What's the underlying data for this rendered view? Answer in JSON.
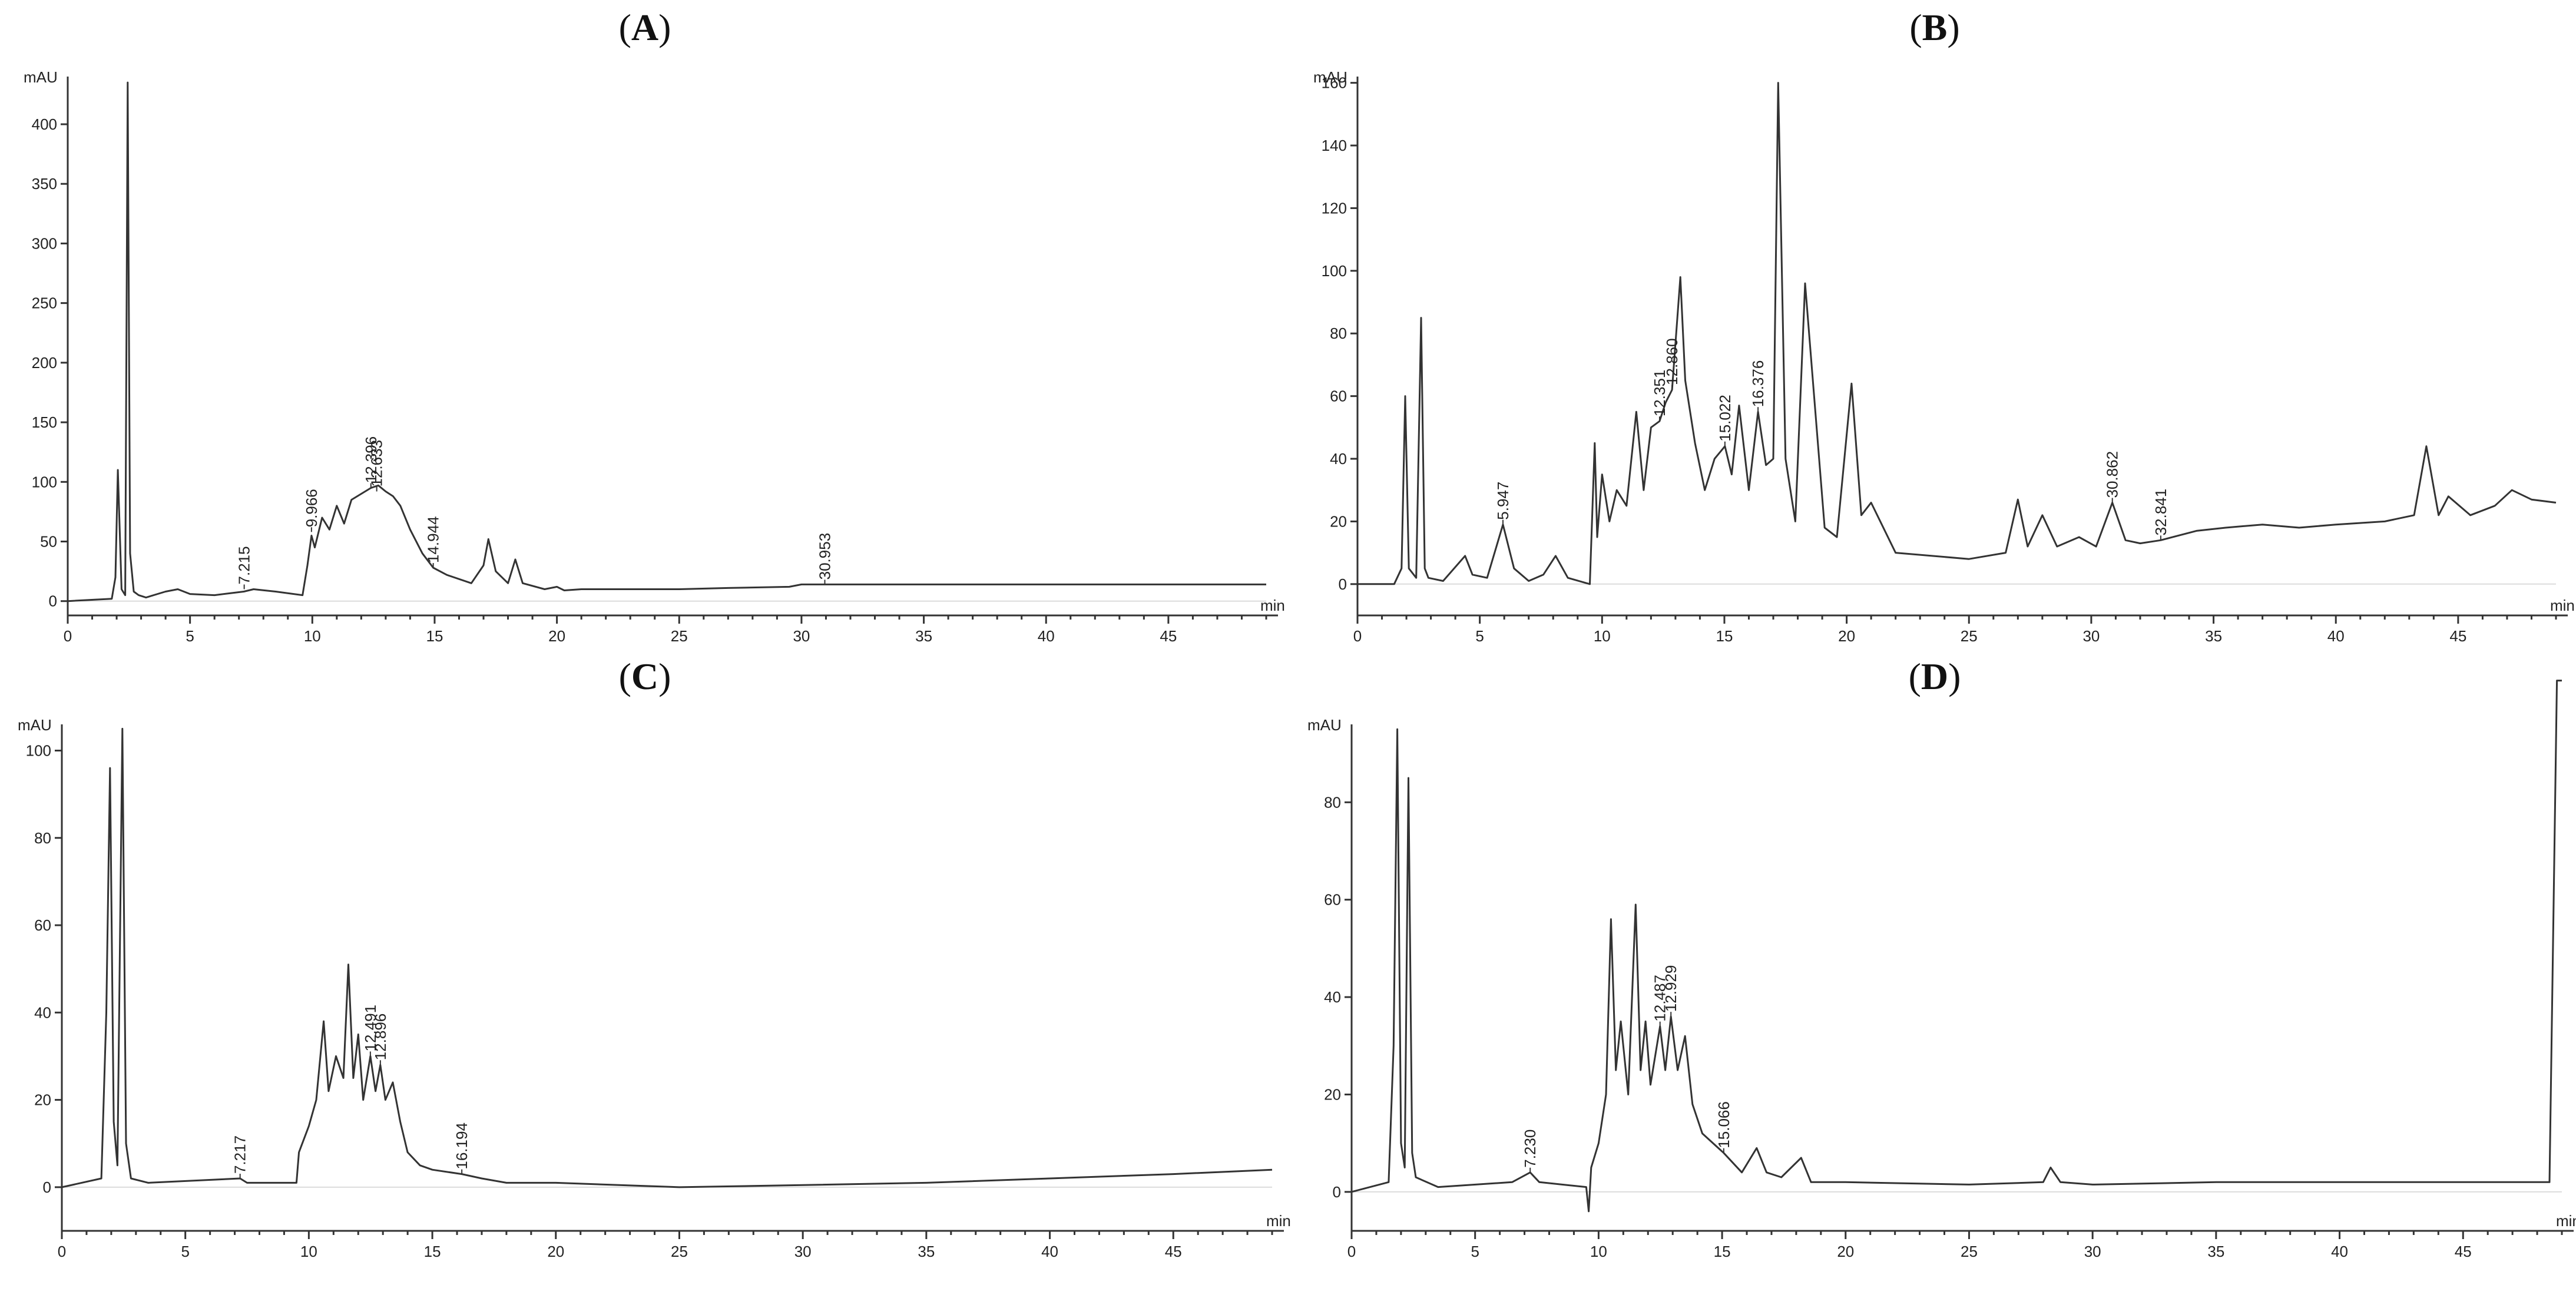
{
  "chart_data": [
    {
      "panel": "A",
      "type": "line",
      "y_unit": "mAU",
      "x_unit": "min",
      "xlim": [
        0,
        49
      ],
      "ylim": [
        -12,
        440
      ],
      "x_ticks": [
        0,
        5,
        10,
        15,
        20,
        25,
        30,
        35,
        40,
        45
      ],
      "y_ticks": [
        0,
        50,
        100,
        150,
        200,
        250,
        300,
        350,
        400
      ],
      "series": [
        {
          "x": [
            0,
            1.8,
            1.95,
            2.05,
            2.2,
            2.35,
            2.45,
            2.55,
            2.7,
            2.9,
            3.2,
            4,
            4.5,
            5,
            6,
            7.2,
            7.6,
            8.5,
            9.6,
            9.8,
            9.966,
            10.1,
            10.4,
            10.7,
            11,
            11.3,
            11.6,
            12,
            12.4,
            12.7,
            13,
            13.3,
            13.6,
            14,
            14.5,
            14.944,
            15.5,
            16.5,
            17,
            17.2,
            17.5,
            18,
            18.3,
            18.6,
            19.5,
            20,
            20.3,
            21,
            25,
            27,
            29.5,
            30,
            30.953,
            35,
            40,
            45,
            49
          ],
          "y": [
            0,
            2,
            20,
            110,
            10,
            5,
            435,
            40,
            8,
            5,
            3,
            8,
            10,
            6,
            5,
            8,
            10,
            8,
            5,
            30,
            55,
            45,
            70,
            60,
            80,
            65,
            85,
            90,
            95,
            97,
            92,
            88,
            80,
            60,
            40,
            28,
            22,
            15,
            30,
            52,
            25,
            15,
            35,
            15,
            10,
            12,
            9,
            10,
            10,
            11,
            12,
            14,
            14,
            14,
            14,
            14,
            14
          ]
        }
      ],
      "peak_labels": [
        {
          "x": 7.215,
          "y": 10,
          "label": "7.215"
        },
        {
          "x": 9.966,
          "y": 58,
          "label": "9.966"
        },
        {
          "x": 12.396,
          "y": 95,
          "label": "12.396"
        },
        {
          "x": 12.633,
          "y": 92,
          "label": "12.633"
        },
        {
          "x": 14.944,
          "y": 28,
          "label": "14.944"
        },
        {
          "x": 30.953,
          "y": 14,
          "label": "30.953"
        }
      ]
    },
    {
      "panel": "B",
      "type": "line",
      "y_unit": "mAU",
      "x_unit": "min",
      "xlim": [
        0,
        49
      ],
      "ylim": [
        -10,
        162
      ],
      "x_ticks": [
        0,
        5,
        10,
        15,
        20,
        25,
        30,
        35,
        40,
        45
      ],
      "y_ticks": [
        0,
        20,
        40,
        60,
        80,
        100,
        120,
        140,
        160
      ],
      "series": [
        {
          "x": [
            0,
            1.5,
            1.8,
            1.95,
            2.1,
            2.4,
            2.6,
            2.75,
            2.9,
            3.5,
            4.4,
            4.7,
            5.3,
            5.947,
            6.4,
            7,
            7.6,
            8.1,
            8.6,
            9.5,
            9.7,
            9.8,
            10.0,
            10.3,
            10.6,
            11.0,
            11.4,
            11.7,
            12.0,
            12.351,
            12.6,
            12.86,
            13.2,
            13.4,
            13.8,
            14.2,
            14.6,
            15.022,
            15.3,
            15.6,
            16.0,
            16.376,
            16.7,
            17.0,
            17.2,
            17.5,
            17.9,
            18.3,
            18.7,
            19.1,
            19.6,
            20.2,
            20.6,
            21.0,
            22,
            25,
            26.5,
            27.0,
            27.4,
            28.0,
            28.6,
            29.5,
            30.2,
            30.862,
            31.4,
            32.0,
            32.841,
            34.3,
            35.5,
            37,
            38.5,
            40,
            42,
            43.2,
            43.7,
            44.2,
            44.6,
            45.5,
            46.5,
            47.2,
            48,
            49
          ],
          "y": [
            0,
            0,
            5,
            60,
            5,
            2,
            85,
            5,
            2,
            1,
            9,
            3,
            2,
            19,
            5,
            1,
            3,
            9,
            2,
            0,
            45,
            15,
            35,
            20,
            30,
            25,
            55,
            30,
            50,
            52,
            58,
            62,
            98,
            65,
            45,
            30,
            40,
            44,
            35,
            57,
            30,
            55,
            38,
            40,
            160,
            40,
            20,
            96,
            57,
            18,
            15,
            64,
            22,
            26,
            10,
            8,
            10,
            27,
            12,
            22,
            12,
            15,
            12,
            26,
            14,
            13,
            14,
            17,
            18,
            19,
            18,
            19,
            20,
            22,
            44,
            22,
            28,
            22,
            25,
            30,
            27,
            26
          ]
        }
      ],
      "peak_labels": [
        {
          "x": 5.947,
          "y": 19,
          "label": "5.947"
        },
        {
          "x": 12.351,
          "y": 52,
          "label": "12.351"
        },
        {
          "x": 12.86,
          "y": 62,
          "label": "12.860"
        },
        {
          "x": 15.022,
          "y": 44,
          "label": "15.022"
        },
        {
          "x": 16.376,
          "y": 55,
          "label": "16.376"
        },
        {
          "x": 30.862,
          "y": 26,
          "label": "30.862"
        },
        {
          "x": 32.841,
          "y": 14,
          "label": "32.841"
        }
      ]
    },
    {
      "panel": "C",
      "type": "line",
      "y_unit": "mAU",
      "x_unit": "min",
      "xlim": [
        0,
        49
      ],
      "ylim": [
        -10,
        106
      ],
      "x_ticks": [
        0,
        5,
        10,
        15,
        20,
        25,
        30,
        35,
        40,
        45
      ],
      "y_ticks": [
        0,
        20,
        40,
        60,
        80,
        100
      ],
      "series": [
        {
          "x": [
            0,
            1.6,
            1.8,
            1.95,
            2.1,
            2.25,
            2.45,
            2.6,
            2.8,
            3.5,
            7.217,
            7.5,
            9.5,
            9.6,
            10.0,
            10.3,
            10.6,
            10.8,
            11.1,
            11.4,
            11.6,
            11.8,
            12.0,
            12.2,
            12.491,
            12.7,
            12.896,
            13.1,
            13.4,
            13.7,
            14.0,
            14.5,
            15.0,
            16.194,
            17,
            18,
            20,
            25,
            30,
            35,
            40,
            45,
            49
          ],
          "y": [
            0,
            2,
            40,
            96,
            15,
            5,
            105,
            10,
            2,
            1,
            2,
            1,
            1,
            8,
            14,
            20,
            38,
            22,
            30,
            25,
            51,
            25,
            35,
            20,
            30,
            22,
            28,
            20,
            24,
            15,
            8,
            5,
            4,
            3,
            2,
            1,
            1,
            0,
            0.5,
            1,
            2,
            3,
            4
          ]
        }
      ],
      "peak_labels": [
        {
          "x": 7.217,
          "y": 2,
          "label": "7.217"
        },
        {
          "x": 12.491,
          "y": 30,
          "label": "12.491"
        },
        {
          "x": 12.896,
          "y": 28,
          "label": "12.896"
        },
        {
          "x": 16.194,
          "y": 3,
          "label": "16.194"
        }
      ]
    },
    {
      "panel": "D",
      "type": "line",
      "y_unit": "mAU",
      "x_unit": "min",
      "xlim": [
        0,
        49
      ],
      "ylim": [
        -8,
        96
      ],
      "x_ticks": [
        0,
        5,
        10,
        15,
        20,
        25,
        30,
        35,
        40,
        45
      ],
      "y_ticks": [
        0,
        20,
        40,
        60,
        80
      ],
      "series": [
        {
          "x": [
            0,
            1.5,
            1.7,
            1.85,
            2.0,
            2.15,
            2.3,
            2.45,
            2.6,
            3.5,
            6.5,
            7.23,
            7.6,
            9.5,
            9.6,
            9.7,
            10.0,
            10.3,
            10.5,
            10.7,
            10.9,
            11.2,
            11.5,
            11.7,
            11.9,
            12.1,
            12.487,
            12.7,
            12.929,
            13.2,
            13.5,
            13.8,
            14.2,
            15.066,
            15.8,
            16.4,
            16.8,
            17.4,
            18.2,
            18.6,
            20,
            25,
            28,
            28.3,
            28.7,
            30,
            35,
            40,
            45,
            48.5,
            48.8,
            49
          ],
          "y": [
            0,
            2,
            30,
            95,
            10,
            5,
            85,
            8,
            3,
            1,
            2,
            4,
            2,
            1,
            -4,
            5,
            10,
            20,
            56,
            25,
            35,
            20,
            59,
            25,
            35,
            22,
            34,
            25,
            36,
            25,
            32,
            18,
            12,
            8,
            4,
            9,
            4,
            3,
            7,
            2,
            2,
            1.5,
            2,
            5,
            2,
            1.5,
            2,
            2,
            2,
            2,
            105,
            105
          ]
        }
      ],
      "peak_labels": [
        {
          "x": 7.23,
          "y": 4,
          "label": "7.230"
        },
        {
          "x": 12.487,
          "y": 34,
          "label": "12.487"
        },
        {
          "x": 12.929,
          "y": 36,
          "label": "12.929"
        },
        {
          "x": 15.066,
          "y": 8,
          "label": "15.066"
        }
      ]
    }
  ]
}
